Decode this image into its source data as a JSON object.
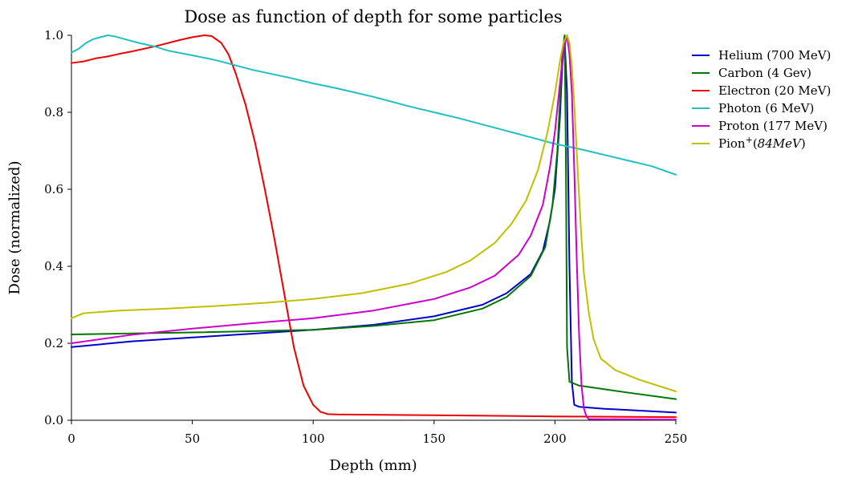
{
  "chart_data": {
    "type": "line",
    "title": "Dose as function of depth for some particles",
    "xlabel": "Depth (mm)",
    "ylabel": "Dose (normalized)",
    "xlim": [
      0,
      250
    ],
    "ylim": [
      0,
      1.0
    ],
    "xticks": [
      0,
      50,
      100,
      150,
      200,
      250
    ],
    "xtick_labels": [
      "0",
      "50",
      "100",
      "150",
      "200",
      "250"
    ],
    "yticks": [
      0.0,
      0.2,
      0.4,
      0.6,
      0.8,
      1.0
    ],
    "ytick_labels": [
      "0.0",
      "0.2",
      "0.4",
      "0.6",
      "0.8",
      "1.0"
    ],
    "grid": false,
    "legend_position": "top-right",
    "series": [
      {
        "name": "Helium (700 MeV)",
        "color": "#0000cc",
        "points": [
          [
            0,
            0.19
          ],
          [
            25,
            0.205
          ],
          [
            50,
            0.215
          ],
          [
            75,
            0.225
          ],
          [
            100,
            0.235
          ],
          [
            125,
            0.248
          ],
          [
            150,
            0.27
          ],
          [
            170,
            0.3
          ],
          [
            180,
            0.33
          ],
          [
            190,
            0.38
          ],
          [
            195,
            0.44
          ],
          [
            198,
            0.52
          ],
          [
            200,
            0.6
          ],
          [
            202,
            0.78
          ],
          [
            203,
            0.92
          ],
          [
            204,
            0.99
          ],
          [
            205,
            0.85
          ],
          [
            206,
            0.4
          ],
          [
            207,
            0.1
          ],
          [
            208,
            0.04
          ],
          [
            210,
            0.035
          ],
          [
            220,
            0.03
          ],
          [
            250,
            0.02
          ]
        ]
      },
      {
        "name": "Carbon (4 Gev)",
        "color": "#007700",
        "points": [
          [
            0,
            0.223
          ],
          [
            50,
            0.228
          ],
          [
            100,
            0.235
          ],
          [
            125,
            0.245
          ],
          [
            150,
            0.26
          ],
          [
            170,
            0.29
          ],
          [
            180,
            0.32
          ],
          [
            190,
            0.375
          ],
          [
            196,
            0.45
          ],
          [
            199,
            0.56
          ],
          [
            201,
            0.7
          ],
          [
            202,
            0.82
          ],
          [
            203,
            0.95
          ],
          [
            204,
            1.0
          ],
          [
            204.5,
            0.7
          ],
          [
            205,
            0.19
          ],
          [
            206,
            0.1
          ],
          [
            210,
            0.09
          ],
          [
            230,
            0.072
          ],
          [
            250,
            0.055
          ]
        ]
      },
      {
        "name": "Electron (20 MeV)",
        "color": "#ee0000",
        "points": [
          [
            0,
            0.928
          ],
          [
            5,
            0.932
          ],
          [
            10,
            0.94
          ],
          [
            15,
            0.945
          ],
          [
            20,
            0.952
          ],
          [
            25,
            0.958
          ],
          [
            30,
            0.965
          ],
          [
            35,
            0.972
          ],
          [
            40,
            0.98
          ],
          [
            45,
            0.988
          ],
          [
            50,
            0.995
          ],
          [
            55,
            1.0
          ],
          [
            58,
            0.998
          ],
          [
            62,
            0.98
          ],
          [
            65,
            0.95
          ],
          [
            68,
            0.9
          ],
          [
            72,
            0.82
          ],
          [
            76,
            0.72
          ],
          [
            80,
            0.6
          ],
          [
            84,
            0.47
          ],
          [
            88,
            0.33
          ],
          [
            92,
            0.19
          ],
          [
            96,
            0.09
          ],
          [
            100,
            0.04
          ],
          [
            103,
            0.022
          ],
          [
            106,
            0.016
          ],
          [
            110,
            0.015
          ],
          [
            150,
            0.013
          ],
          [
            200,
            0.01
          ],
          [
            250,
            0.008
          ]
        ]
      },
      {
        "name": "Photon (6 MeV)",
        "color": "#20c0c0",
        "points": [
          [
            0,
            0.955
          ],
          [
            3,
            0.965
          ],
          [
            6,
            0.98
          ],
          [
            9,
            0.99
          ],
          [
            12,
            0.995
          ],
          [
            15,
            1.0
          ],
          [
            18,
            0.997
          ],
          [
            22,
            0.99
          ],
          [
            28,
            0.98
          ],
          [
            35,
            0.97
          ],
          [
            40,
            0.96
          ],
          [
            50,
            0.948
          ],
          [
            60,
            0.935
          ],
          [
            75,
            0.91
          ],
          [
            90,
            0.89
          ],
          [
            100,
            0.875
          ],
          [
            110,
            0.862
          ],
          [
            125,
            0.84
          ],
          [
            140,
            0.815
          ],
          [
            150,
            0.8
          ],
          [
            160,
            0.785
          ],
          [
            175,
            0.76
          ],
          [
            190,
            0.735
          ],
          [
            200,
            0.718
          ],
          [
            210,
            0.705
          ],
          [
            220,
            0.69
          ],
          [
            230,
            0.675
          ],
          [
            240,
            0.66
          ],
          [
            250,
            0.638
          ]
        ]
      },
      {
        "name": "Proton (177 MeV)",
        "color": "#cc00cc",
        "points": [
          [
            0,
            0.2
          ],
          [
            25,
            0.222
          ],
          [
            50,
            0.238
          ],
          [
            75,
            0.252
          ],
          [
            100,
            0.265
          ],
          [
            125,
            0.285
          ],
          [
            150,
            0.315
          ],
          [
            165,
            0.345
          ],
          [
            175,
            0.375
          ],
          [
            185,
            0.43
          ],
          [
            190,
            0.48
          ],
          [
            195,
            0.56
          ],
          [
            198,
            0.66
          ],
          [
            200,
            0.75
          ],
          [
            202,
            0.87
          ],
          [
            203.5,
            0.96
          ],
          [
            205,
            1.0
          ],
          [
            206,
            0.95
          ],
          [
            207,
            0.85
          ],
          [
            208,
            0.65
          ],
          [
            209,
            0.42
          ],
          [
            210,
            0.22
          ],
          [
            211,
            0.09
          ],
          [
            212,
            0.03
          ],
          [
            213,
            0.01
          ],
          [
            214,
            0.003
          ],
          [
            250,
            0.002
          ]
        ]
      },
      {
        "name": "Pion",
        "color": "#c0c000",
        "points": [
          [
            0,
            0.265
          ],
          [
            5,
            0.278
          ],
          [
            20,
            0.285
          ],
          [
            40,
            0.29
          ],
          [
            60,
            0.297
          ],
          [
            80,
            0.305
          ],
          [
            100,
            0.315
          ],
          [
            120,
            0.33
          ],
          [
            140,
            0.355
          ],
          [
            155,
            0.385
          ],
          [
            165,
            0.415
          ],
          [
            175,
            0.46
          ],
          [
            182,
            0.51
          ],
          [
            188,
            0.57
          ],
          [
            193,
            0.65
          ],
          [
            197,
            0.75
          ],
          [
            200,
            0.85
          ],
          [
            202,
            0.93
          ],
          [
            203.5,
            0.98
          ],
          [
            205,
            1.0
          ],
          [
            206,
            0.98
          ],
          [
            207,
            0.92
          ],
          [
            208,
            0.82
          ],
          [
            209,
            0.7
          ],
          [
            210,
            0.58
          ],
          [
            211,
            0.47
          ],
          [
            212,
            0.38
          ],
          [
            214,
            0.28
          ],
          [
            216,
            0.21
          ],
          [
            219,
            0.16
          ],
          [
            225,
            0.13
          ],
          [
            235,
            0.105
          ],
          [
            250,
            0.075
          ]
        ]
      }
    ]
  }
}
